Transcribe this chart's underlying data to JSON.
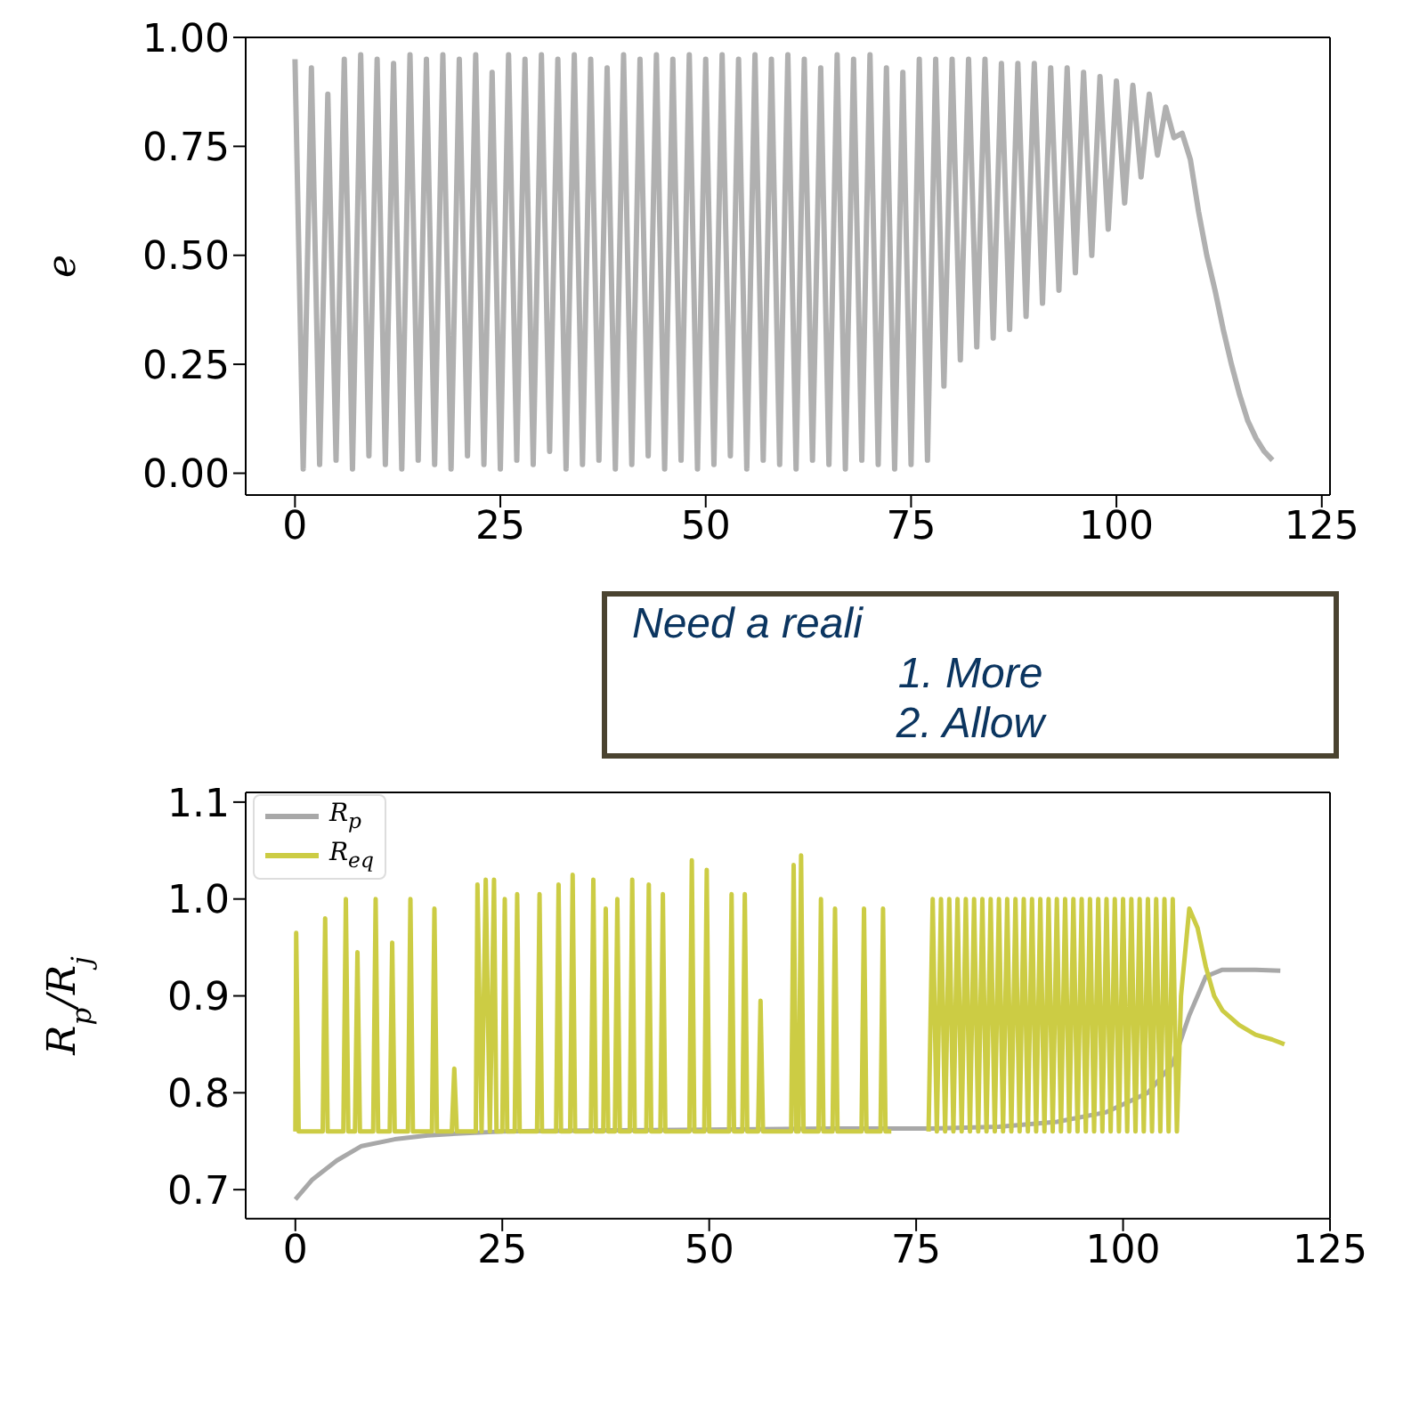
{
  "chart_data": [
    {
      "type": "line",
      "ylabel": "e",
      "xlim": [
        -6,
        126
      ],
      "xticks": [
        0,
        25,
        50,
        75,
        100,
        125
      ],
      "ylim": [
        -0.05,
        1.0
      ],
      "yticks": [
        {
          "value": 0,
          "label": "0.00"
        },
        {
          "value": 0.25,
          "label": "0.25"
        },
        {
          "value": 0.5,
          "label": "0.50"
        },
        {
          "value": 0.75,
          "label": "0.75"
        },
        {
          "value": 1,
          "label": "1.00"
        }
      ],
      "grid": false,
      "legend": false,
      "annotations": [
        "Need a reali",
        "1. More",
        "2. Allow"
      ],
      "series": [
        {
          "color": "#b0b0b0",
          "x": [
            0,
            1,
            2,
            3,
            4,
            5,
            6,
            7,
            8,
            9,
            10,
            11,
            12,
            13,
            14,
            15,
            16,
            17,
            18,
            19,
            20,
            21,
            22,
            23,
            24,
            25,
            26,
            27,
            28,
            29,
            30,
            31,
            32,
            33,
            34,
            35,
            36,
            37,
            38,
            39,
            40,
            41,
            42,
            43,
            44,
            45,
            46,
            47,
            48,
            49,
            50,
            51,
            52,
            53,
            54,
            55,
            56,
            57,
            58,
            59,
            60,
            61,
            62,
            63,
            64,
            65,
            66,
            67,
            68,
            69,
            70,
            71,
            72,
            73,
            74,
            75,
            76,
            77,
            78,
            79,
            80,
            81,
            82,
            83,
            84,
            85,
            86,
            87,
            88,
            89,
            90,
            91,
            92,
            93,
            94,
            95,
            96,
            97,
            98,
            99,
            100,
            101,
            102,
            103,
            104,
            105,
            106,
            107,
            108,
            109,
            110,
            111,
            112,
            113,
            114,
            115,
            116,
            117,
            118,
            119
          ],
          "values": [
            0.95,
            0.01,
            0.93,
            0.02,
            0.87,
            0.03,
            0.95,
            0.01,
            0.96,
            0.04,
            0.95,
            0.02,
            0.94,
            0.01,
            0.96,
            0.03,
            0.95,
            0.02,
            0.96,
            0.01,
            0.95,
            0.04,
            0.96,
            0.02,
            0.92,
            0.01,
            0.96,
            0.03,
            0.95,
            0.02,
            0.96,
            0.05,
            0.95,
            0.01,
            0.96,
            0.02,
            0.95,
            0.03,
            0.93,
            0.01,
            0.96,
            0.02,
            0.95,
            0.04,
            0.96,
            0.01,
            0.95,
            0.03,
            0.96,
            0.01,
            0.95,
            0.02,
            0.96,
            0.04,
            0.95,
            0.01,
            0.96,
            0.03,
            0.95,
            0.02,
            0.96,
            0.01,
            0.95,
            0.03,
            0.93,
            0.02,
            0.96,
            0.01,
            0.95,
            0.03,
            0.96,
            0.02,
            0.93,
            0.01,
            0.92,
            0.02,
            0.95,
            0.03,
            0.95,
            0.2,
            0.95,
            0.26,
            0.95,
            0.29,
            0.95,
            0.31,
            0.94,
            0.33,
            0.94,
            0.36,
            0.94,
            0.39,
            0.93,
            0.42,
            0.93,
            0.46,
            0.92,
            0.5,
            0.91,
            0.56,
            0.9,
            0.62,
            0.89,
            0.68,
            0.87,
            0.73,
            0.84,
            0.77,
            0.78,
            0.72,
            0.6,
            0.5,
            0.42,
            0.33,
            0.25,
            0.18,
            0.12,
            0.08,
            0.05,
            0.03
          ]
        }
      ]
    },
    {
      "type": "line",
      "ylabel": "R$_{p}$/R$_{j}$",
      "xlim": [
        -6,
        125
      ],
      "xticks": [
        0,
        25,
        50,
        75,
        100,
        125
      ],
      "ylim": [
        0.67,
        1.11
      ],
      "yticks": [
        0.7,
        0.8,
        0.9,
        {
          "value": 1,
          "label": "1.0"
        },
        1.1
      ],
      "grid": false,
      "legend": "top left",
      "series": [
        {
          "name": "R$_{p}$",
          "color": "#a8a8a8",
          "x": [
            0,
            2,
            5,
            8,
            12,
            16,
            20,
            25,
            35,
            50,
            65,
            77,
            85,
            92,
            98,
            103,
            106,
            108,
            110,
            112,
            116,
            119
          ],
          "values": [
            0.69,
            0.71,
            0.73,
            0.745,
            0.752,
            0.756,
            0.758,
            0.76,
            0.761,
            0.762,
            0.763,
            0.763,
            0.765,
            0.77,
            0.78,
            0.8,
            0.83,
            0.88,
            0.92,
            0.927,
            0.927,
            0.926
          ]
        },
        {
          "name": "R$_{eq}$",
          "color": "#cccc44",
          "x": [
            0,
            0.1,
            0.4,
            3.3,
            3.6,
            3.9,
            5.8,
            6.1,
            6.4,
            7.2,
            7.5,
            7.8,
            9.4,
            9.7,
            10,
            11.4,
            11.7,
            12,
            13.6,
            13.9,
            14.2,
            16.5,
            16.8,
            17.1,
            18.9,
            19.2,
            19.5,
            21.8,
            22,
            22.5,
            23,
            23.5,
            24,
            24.3,
            25,
            25.3,
            25.6,
            26.5,
            26.8,
            27.1,
            29.2,
            29.5,
            29.8,
            31.5,
            31.8,
            32.1,
            33.2,
            33.5,
            33.8,
            35.7,
            36,
            36.3,
            37.2,
            37.5,
            37.8,
            38.6,
            38.9,
            39.2,
            40.4,
            40.7,
            41,
            42.4,
            42.7,
            43,
            44.1,
            44.4,
            44.7,
            47.6,
            47.9,
            48.2,
            49.4,
            49.7,
            50,
            52.4,
            52.7,
            53,
            54,
            54.3,
            54.6,
            55.9,
            56.2,
            56.5,
            59.9,
            60.2,
            60.5,
            60.8,
            61.1,
            61.4,
            63.2,
            63.5,
            63.8,
            64.9,
            65.2,
            65.5,
            68.4,
            68.7,
            69,
            70.7,
            71,
            71.3,
            72,
            74,
            76.5,
            77,
            77.5,
            78,
            78.5,
            79,
            79.5,
            80,
            80.5,
            81,
            81.5,
            82,
            82.5,
            83,
            83.5,
            84,
            84.5,
            85,
            85.5,
            86,
            86.5,
            87,
            87.5,
            88,
            88.5,
            89,
            89.5,
            90,
            90.5,
            91,
            91.5,
            92,
            92.5,
            93,
            93.5,
            94,
            94.5,
            95,
            95.5,
            96,
            96.5,
            97,
            97.5,
            98,
            98.5,
            99,
            99.5,
            100,
            100.5,
            101,
            101.5,
            102,
            102.5,
            103,
            103.5,
            104,
            104.5,
            105,
            105.5,
            106,
            106.5,
            107,
            108,
            109,
            110,
            111,
            112,
            114,
            116,
            118,
            119.5
          ],
          "values": [
            0.76,
            0.965,
            0.76,
            0.76,
            0.98,
            0.76,
            0.76,
            1.0,
            0.76,
            0.76,
            0.945,
            0.76,
            0.76,
            1.0,
            0.76,
            0.76,
            0.955,
            0.76,
            0.76,
            1.0,
            0.76,
            0.76,
            0.99,
            0.76,
            0.76,
            0.825,
            0.76,
            0.76,
            1.015,
            0.76,
            1.02,
            0.76,
            1.02,
            0.76,
            0.76,
            1.0,
            0.76,
            0.76,
            1.005,
            0.76,
            0.76,
            1.005,
            0.76,
            0.76,
            1.015,
            0.76,
            0.76,
            1.025,
            0.76,
            0.76,
            1.02,
            0.76,
            0.76,
            0.99,
            0.76,
            0.76,
            1.0,
            0.76,
            0.76,
            1.02,
            0.76,
            0.76,
            1.015,
            0.76,
            0.76,
            1.005,
            0.76,
            0.76,
            1.04,
            0.76,
            0.76,
            1.03,
            0.76,
            0.76,
            1.005,
            0.76,
            0.76,
            1.005,
            0.76,
            0.76,
            0.895,
            0.76,
            0.76,
            1.035,
            0.76,
            0.76,
            1.045,
            0.76,
            0.76,
            1.0,
            0.76,
            0.76,
            0.99,
            0.76,
            0.76,
            0.99,
            0.76,
            0.76,
            0.99,
            0.76,
            0.76,
            null,
            0.76,
            1.0,
            0.76,
            1.0,
            0.76,
            1.0,
            0.76,
            1.0,
            0.76,
            1.0,
            0.76,
            1.0,
            0.76,
            1.0,
            0.76,
            1.0,
            0.76,
            1.0,
            0.76,
            1.0,
            0.76,
            1.0,
            0.76,
            1.0,
            0.76,
            1.0,
            0.76,
            1.0,
            0.76,
            1.0,
            0.76,
            1.0,
            0.76,
            1.0,
            0.76,
            1.0,
            0.76,
            1.0,
            0.76,
            1.0,
            0.76,
            1.0,
            0.76,
            1.0,
            0.76,
            1.0,
            0.76,
            1.0,
            0.76,
            1.0,
            0.76,
            1.0,
            0.76,
            1.0,
            0.76,
            1.0,
            0.76,
            1.0,
            0.76,
            1.0,
            0.76,
            0.9,
            0.99,
            0.97,
            0.93,
            0.9,
            0.885,
            0.87,
            0.86,
            0.855,
            0.85
          ]
        }
      ]
    }
  ]
}
